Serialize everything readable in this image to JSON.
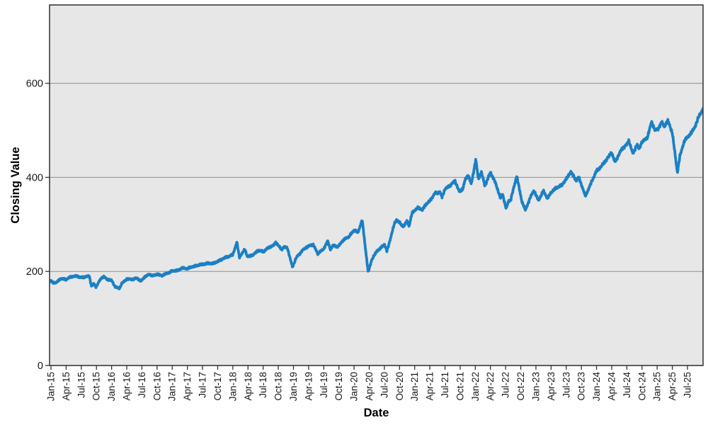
{
  "chart_data": {
    "type": "line",
    "title": "",
    "xlabel": "Date",
    "ylabel": "Closing Value",
    "legend": "none",
    "grid": "horizontal",
    "plot_bg": "#e7e7e7",
    "grid_color": "#8f8f8f",
    "frame_color": "#3a3a3a",
    "line_color": "#1b80c4",
    "text_color": "#1a1a1a",
    "x_unit": "months since Jan-2015 (quarterly ticks)",
    "xlim_months": [
      -0.28,
      129.1
    ],
    "ylim": [
      0,
      766
    ],
    "y_axis": {
      "title": "Closing Value",
      "ticks": [
        0,
        200,
        400,
        600
      ]
    },
    "x_axis": {
      "title": "Date",
      "tick_labels": [
        "Jan-15",
        "Apr-15",
        "Jul-15",
        "Oct-15",
        "Jan-16",
        "Apr-16",
        "Jul-16",
        "Oct-16",
        "Jan-17",
        "Apr-17",
        "Jul-17",
        "Oct-17",
        "Jan-18",
        "Apr-18",
        "Jul-18",
        "Oct-18",
        "Jan-19",
        "Apr-19",
        "Jul-19",
        "Oct-19",
        "Jan-20",
        "Apr-20",
        "Jul-20",
        "Oct-20",
        "Jan-21",
        "Apr-21",
        "Jul-21",
        "Oct-21",
        "Jan-22",
        "Apr-22",
        "Jul-22",
        "Oct-22",
        "Jan-23",
        "Apr-23",
        "Jul-23",
        "Oct-23",
        "Jan-24",
        "Apr-24",
        "Jul-24",
        "Oct-24",
        "Jan-25",
        "Apr-25",
        "Jul-25"
      ],
      "tick_interval_months": 3
    },
    "series": [
      {
        "name": "Closing Value",
        "points_note": "pairs of [months since Jan-2015, closing value] read from the plotted line",
        "points": [
          [
            0,
            179
          ],
          [
            0.5,
            176
          ],
          [
            1,
            176
          ],
          [
            2,
            185
          ],
          [
            3,
            183
          ],
          [
            4,
            189
          ],
          [
            5,
            190
          ],
          [
            6,
            187
          ],
          [
            7,
            189
          ],
          [
            7.6,
            190
          ],
          [
            8,
            169
          ],
          [
            8.5,
            174
          ],
          [
            8.9,
            167
          ],
          [
            9.5,
            178
          ],
          [
            10,
            186
          ],
          [
            10.5,
            189
          ],
          [
            11,
            184
          ],
          [
            12,
            181
          ],
          [
            12.6,
            169
          ],
          [
            13.5,
            163
          ],
          [
            14,
            174
          ],
          [
            15,
            184
          ],
          [
            16,
            183
          ],
          [
            17,
            186
          ],
          [
            17.8,
            179
          ],
          [
            18.5,
            188
          ],
          [
            19.5,
            194
          ],
          [
            20.2,
            191
          ],
          [
            21,
            194
          ],
          [
            22,
            191
          ],
          [
            23,
            196
          ],
          [
            24,
            201
          ],
          [
            25,
            202
          ],
          [
            26,
            207
          ],
          [
            27,
            206
          ],
          [
            28,
            210
          ],
          [
            29,
            213
          ],
          [
            30,
            215
          ],
          [
            31,
            217
          ],
          [
            32,
            217
          ],
          [
            33,
            221
          ],
          [
            34,
            227
          ],
          [
            35,
            231
          ],
          [
            36,
            236
          ],
          [
            36.8,
            262
          ],
          [
            37.3,
            230
          ],
          [
            38.4,
            247
          ],
          [
            38.9,
            231
          ],
          [
            40,
            235
          ],
          [
            41,
            245
          ],
          [
            42,
            242
          ],
          [
            43,
            250
          ],
          [
            44,
            255
          ],
          [
            44.5,
            262
          ],
          [
            45.6,
            247
          ],
          [
            46.2,
            252
          ],
          [
            46.8,
            250
          ],
          [
            47.8,
            209
          ],
          [
            48.5,
            228
          ],
          [
            49,
            235
          ],
          [
            50,
            247
          ],
          [
            51,
            254
          ],
          [
            51.9,
            257
          ],
          [
            52.8,
            238
          ],
          [
            54,
            248
          ],
          [
            54.8,
            265
          ],
          [
            55.3,
            247
          ],
          [
            56,
            256
          ],
          [
            56.8,
            252
          ],
          [
            57.5,
            262
          ],
          [
            58,
            268
          ],
          [
            59,
            274
          ],
          [
            60,
            288
          ],
          [
            60.8,
            283
          ],
          [
            61.6,
            310
          ],
          [
            62.8,
            198
          ],
          [
            63.5,
            225
          ],
          [
            64.5,
            243
          ],
          [
            65.5,
            252
          ],
          [
            66,
            258
          ],
          [
            66.5,
            243
          ],
          [
            67,
            262
          ],
          [
            68,
            302
          ],
          [
            68.4,
            310
          ],
          [
            69.8,
            295
          ],
          [
            70.5,
            308
          ],
          [
            70.9,
            296
          ],
          [
            71.5,
            325
          ],
          [
            72,
            330
          ],
          [
            72.8,
            336
          ],
          [
            73.5,
            330
          ],
          [
            74,
            340
          ],
          [
            75,
            350
          ],
          [
            76,
            366
          ],
          [
            77,
            368
          ],
          [
            77.4,
            358
          ],
          [
            78,
            375
          ],
          [
            79,
            383
          ],
          [
            80,
            392
          ],
          [
            80.8,
            370
          ],
          [
            81.5,
            375
          ],
          [
            82,
            395
          ],
          [
            82.6,
            405
          ],
          [
            83.2,
            385
          ],
          [
            84.1,
            438
          ],
          [
            84.6,
            396
          ],
          [
            85.2,
            411
          ],
          [
            85.9,
            382
          ],
          [
            87,
            411
          ],
          [
            88,
            388
          ],
          [
            89,
            355
          ],
          [
            89.4,
            365
          ],
          [
            90.1,
            333
          ],
          [
            90.6,
            350
          ],
          [
            91,
            352
          ],
          [
            92.2,
            403
          ],
          [
            93.2,
            350
          ],
          [
            93.9,
            330
          ],
          [
            95,
            360
          ],
          [
            95.6,
            372
          ],
          [
            96.5,
            351
          ],
          [
            97.5,
            371
          ],
          [
            98.3,
            355
          ],
          [
            99,
            368
          ],
          [
            100,
            378
          ],
          [
            101,
            382
          ],
          [
            102,
            396
          ],
          [
            102.9,
            412
          ],
          [
            104,
            393
          ],
          [
            104.5,
            400
          ],
          [
            105.8,
            360
          ],
          [
            107,
            390
          ],
          [
            108,
            414
          ],
          [
            109,
            424
          ],
          [
            110,
            438
          ],
          [
            111,
            453
          ],
          [
            111.6,
            433
          ],
          [
            112,
            440
          ],
          [
            113,
            460
          ],
          [
            114,
            470
          ],
          [
            114.4,
            478
          ],
          [
            115.2,
            450
          ],
          [
            116,
            470
          ],
          [
            116.4,
            460
          ],
          [
            117,
            476
          ],
          [
            118,
            483
          ],
          [
            118.9,
            518
          ],
          [
            119.6,
            500
          ],
          [
            120.2,
            503
          ],
          [
            120.9,
            518
          ],
          [
            121.4,
            508
          ],
          [
            122.1,
            521
          ],
          [
            123,
            495
          ],
          [
            124,
            410
          ],
          [
            124.5,
            445
          ],
          [
            125.4,
            478
          ],
          [
            126.8,
            495
          ],
          [
            127.5,
            508
          ],
          [
            128.2,
            528
          ],
          [
            129.1,
            546
          ]
        ]
      }
    ]
  }
}
